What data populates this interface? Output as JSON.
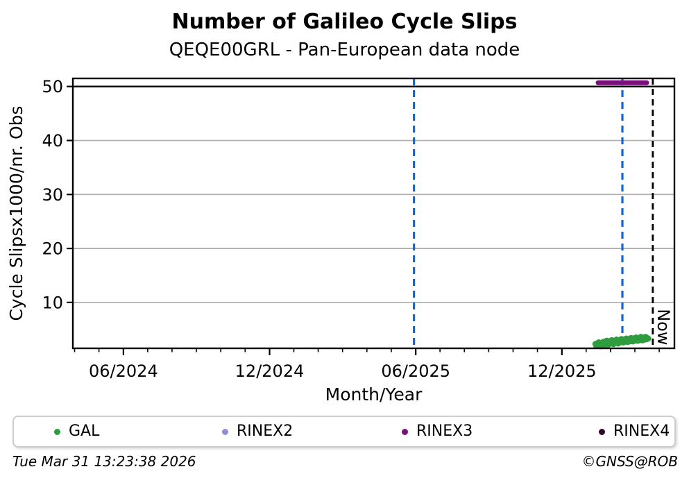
{
  "header": {
    "title": "Number of Galileo Cycle Slips",
    "subtitle": "QEQE00GRL - Pan-European data node"
  },
  "chart_data": {
    "type": "scatter",
    "title": "Number of Galileo Cycle Slips",
    "subtitle": "QEQE00GRL - Pan-European data node",
    "xlabel": "Month/Year",
    "ylabel": "Cycle Slipsx1000/nr. Obs",
    "xlim": [
      2024.244,
      2026.302
    ],
    "ylim": [
      1.5,
      51.5
    ],
    "grid": {
      "on": true,
      "color": "#b0b0b0",
      "y_values": [
        10,
        20,
        30,
        40
      ]
    },
    "x_ticks": [
      {
        "value": 2024.417,
        "label": "06/2024"
      },
      {
        "value": 2024.917,
        "label": "12/2024"
      },
      {
        "value": 2025.417,
        "label": "06/2025"
      },
      {
        "value": 2025.917,
        "label": "12/2025"
      }
    ],
    "x_minor_ticks": "monthly",
    "y_ticks": [
      {
        "value": 10,
        "label": "10"
      },
      {
        "value": 20,
        "label": "20"
      },
      {
        "value": 30,
        "label": "30"
      },
      {
        "value": 40,
        "label": "40"
      },
      {
        "value": 50,
        "label": "50"
      }
    ],
    "reference_lines": [
      {
        "name": "cap-line",
        "type": "hline",
        "y": 50,
        "color": "#000000",
        "style": "solid",
        "width": 2.4
      },
      {
        "name": "event-line-1",
        "type": "vline",
        "x": 2025.411,
        "color": "#1266cc",
        "style": "dashed",
        "width": 3.2
      },
      {
        "name": "event-line-2",
        "type": "vline",
        "x": 2026.124,
        "color": "#1266cc",
        "style": "dashed",
        "width": 3.2
      },
      {
        "name": "now-line",
        "type": "vline",
        "x": 2026.228,
        "color": "#000000",
        "style": "dashed",
        "width": 2.8
      }
    ],
    "annotations": [
      {
        "text": "Now",
        "x": 2026.245,
        "y": 8.8,
        "rotation": 90,
        "font_size": 24
      }
    ],
    "series": [
      {
        "name": "GAL",
        "type": "scatter",
        "color": "#2f9d3f",
        "marker_radius": 4.5,
        "points": [
          [
            2026.032,
            2.3
          ],
          [
            2026.0348,
            2.0
          ],
          [
            2026.0375,
            2.4
          ],
          [
            2026.0403,
            2.1
          ],
          [
            2026.0431,
            2.6
          ],
          [
            2026.0459,
            2.2
          ],
          [
            2026.0486,
            1.9
          ],
          [
            2026.0514,
            2.5
          ],
          [
            2026.0542,
            2.3
          ],
          [
            2026.0569,
            2.0
          ],
          [
            2026.0597,
            2.7
          ],
          [
            2026.0625,
            2.4
          ],
          [
            2026.0652,
            2.1
          ],
          [
            2026.068,
            2.6
          ],
          [
            2026.0708,
            2.9
          ],
          [
            2026.0736,
            2.5
          ],
          [
            2026.0763,
            2.2
          ],
          [
            2026.0791,
            2.8
          ],
          [
            2026.0819,
            2.4
          ],
          [
            2026.0846,
            2.6
          ],
          [
            2026.0874,
            3.0
          ],
          [
            2026.0902,
            2.7
          ],
          [
            2026.0929,
            2.3
          ],
          [
            2026.0957,
            2.9
          ],
          [
            2026.0985,
            2.5
          ],
          [
            2026.1013,
            2.7
          ],
          [
            2026.104,
            3.1
          ],
          [
            2026.1068,
            2.8
          ],
          [
            2026.1096,
            2.4
          ],
          [
            2026.1123,
            3.0
          ],
          [
            2026.1151,
            2.6
          ],
          [
            2026.1179,
            2.8
          ],
          [
            2026.1206,
            3.2
          ],
          [
            2026.1234,
            2.9
          ],
          [
            2026.1262,
            2.6
          ],
          [
            2026.129,
            3.1
          ],
          [
            2026.1317,
            2.7
          ],
          [
            2026.1345,
            2.9
          ],
          [
            2026.1373,
            3.3
          ],
          [
            2026.14,
            3.0
          ],
          [
            2026.1428,
            2.7
          ],
          [
            2026.1456,
            3.2
          ],
          [
            2026.1483,
            2.8
          ],
          [
            2026.1511,
            3.0
          ],
          [
            2026.1539,
            3.4
          ],
          [
            2026.1567,
            3.1
          ],
          [
            2026.1594,
            2.8
          ],
          [
            2026.1622,
            3.3
          ],
          [
            2026.165,
            2.9
          ],
          [
            2026.1677,
            3.1
          ],
          [
            2026.1705,
            3.5
          ],
          [
            2026.1733,
            3.2
          ],
          [
            2026.176,
            2.9
          ],
          [
            2026.1788,
            3.4
          ],
          [
            2026.1816,
            3.0
          ],
          [
            2026.1844,
            3.2
          ],
          [
            2026.1871,
            3.6
          ],
          [
            2026.1899,
            3.3
          ],
          [
            2026.1927,
            3.0
          ],
          [
            2026.1954,
            3.5
          ],
          [
            2026.1982,
            3.1
          ],
          [
            2026.201,
            3.3
          ],
          [
            2026.2037,
            3.6
          ],
          [
            2026.2065,
            3.2
          ],
          [
            2026.2093,
            3.4
          ],
          [
            2026.2121,
            3.3
          ]
        ]
      },
      {
        "name": "RINEX2",
        "type": "scatter",
        "color": "#8f8fd4",
        "marker_radius": 4.5,
        "points": []
      },
      {
        "name": "RINEX3",
        "type": "line",
        "color": "#7a0e7a",
        "line_width": 7,
        "points": [
          [
            2026.041,
            50.7
          ],
          [
            2026.207,
            50.7
          ]
        ]
      },
      {
        "name": "RINEX4",
        "type": "scatter",
        "color": "#2d082d",
        "marker_radius": 4.5,
        "points": []
      }
    ],
    "legend_position": "bottom"
  },
  "legend": {
    "items": [
      {
        "label": "GAL",
        "color": "#2f9d3f"
      },
      {
        "label": "RINEX2",
        "color": "#8f8fd4"
      },
      {
        "label": "RINEX3",
        "color": "#7a0e7a"
      },
      {
        "label": "RINEX4",
        "color": "#2d082d"
      }
    ]
  },
  "footer": {
    "timestamp": "Tue Mar 31 13:23:38 2026",
    "credit": "©GNSS@ROB"
  }
}
